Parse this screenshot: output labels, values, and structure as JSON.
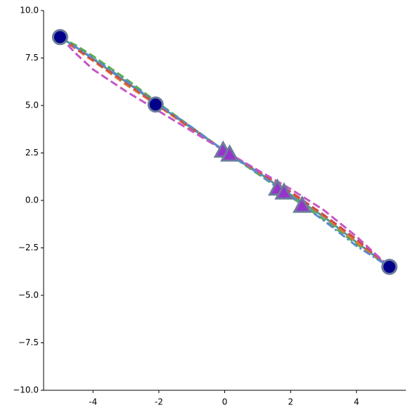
{
  "chart_data": {
    "type": "line",
    "x": [
      -5,
      -4.5,
      -4,
      -3,
      -2,
      -1,
      0,
      1,
      2,
      3,
      4,
      5
    ],
    "series": [
      {
        "color": "#4d9a96",
        "dash": "solid",
        "values": [
          8.6,
          8.05,
          7.45,
          6.25,
          5.0,
          3.8,
          2.6,
          1.5,
          0.3,
          -0.85,
          -2.2,
          -3.5
        ]
      },
      {
        "color": "#5aad4a",
        "dash": "dashed",
        "values": [
          8.6,
          8.15,
          7.6,
          6.4,
          5.1,
          3.85,
          2.6,
          1.4,
          0.2,
          -1.0,
          -2.3,
          -3.5
        ]
      },
      {
        "color": "#dd7a33",
        "dash": "dashed",
        "values": [
          8.6,
          7.95,
          7.35,
          6.1,
          4.95,
          3.75,
          2.6,
          1.5,
          0.4,
          -0.8,
          -2.2,
          -3.5
        ]
      },
      {
        "color": "#cc4b4b",
        "dash": "dashed",
        "values": [
          8.6,
          8.0,
          7.4,
          6.2,
          5.0,
          3.8,
          2.6,
          1.55,
          0.45,
          -0.75,
          -2.05,
          -3.5
        ]
      },
      {
        "color": "#c556c6",
        "dash": "dashed",
        "values": [
          8.6,
          7.7,
          6.9,
          5.75,
          4.7,
          3.65,
          2.6,
          1.6,
          0.6,
          -0.5,
          -1.9,
          -3.5
        ]
      },
      {
        "color": "#5a8bd0",
        "dash": "dashdot",
        "values": [
          8.6,
          8.05,
          7.5,
          6.3,
          5.05,
          3.85,
          2.6,
          1.45,
          0.2,
          -1.05,
          -2.4,
          -3.5
        ]
      }
    ],
    "markers": [
      {
        "shape": "circle",
        "color": "#00008b",
        "x": [
          -5,
          -2.1,
          5
        ],
        "values": [
          8.6,
          5.05,
          -3.5
        ]
      },
      {
        "shape": "triangle",
        "color": "#9932cc",
        "x": [
          -0.05,
          0.15,
          1.6,
          1.8,
          2.35
        ],
        "values": [
          2.6,
          2.4,
          0.6,
          0.4,
          -0.3
        ]
      }
    ],
    "xlim": [
      -5.5,
      5.5
    ],
    "ylim": [
      -10,
      10
    ],
    "xticks": [
      -4,
      -2,
      0,
      2,
      4
    ],
    "yticks": [
      {
        "value": -10,
        "label": "−10.0"
      },
      {
        "value": -7.5,
        "label": "−7.5"
      },
      {
        "value": -5,
        "label": "−5.0"
      },
      {
        "value": -2.5,
        "label": "−2.5"
      },
      {
        "value": 0,
        "label": "0.0"
      },
      {
        "value": 2.5,
        "label": "2.5"
      },
      {
        "value": 5,
        "label": "5.0"
      },
      {
        "value": 7.5,
        "label": "7.5"
      },
      {
        "value": 10,
        "label": "10.0"
      }
    ]
  }
}
